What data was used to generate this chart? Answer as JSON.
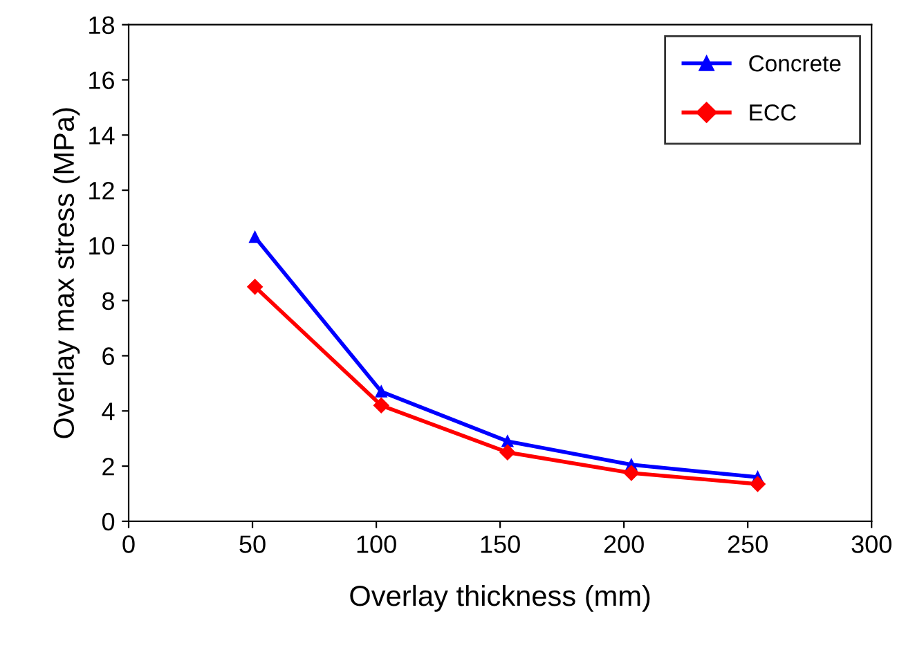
{
  "chart_data": {
    "type": "line",
    "xlabel": "Overlay thickness (mm)",
    "ylabel": "Overlay max stress (MPa)",
    "x": [
      51,
      102,
      153,
      203,
      254
    ],
    "series": [
      {
        "name": "Concrete",
        "color": "#0000ff",
        "marker": "triangle",
        "values": [
          10.3,
          4.7,
          2.9,
          2.05,
          1.6
        ]
      },
      {
        "name": "ECC",
        "color": "#ff0000",
        "marker": "diamond",
        "values": [
          8.5,
          4.2,
          2.5,
          1.75,
          1.35
        ]
      }
    ],
    "xlim": [
      0,
      300
    ],
    "xticks": [
      0,
      50,
      100,
      150,
      200,
      250,
      300
    ],
    "ylim": [
      0,
      18
    ],
    "yticks": [
      0,
      2,
      4,
      6,
      8,
      10,
      12,
      14,
      16,
      18
    ],
    "grid": false,
    "legend": "top right",
    "line_style": "solid"
  }
}
